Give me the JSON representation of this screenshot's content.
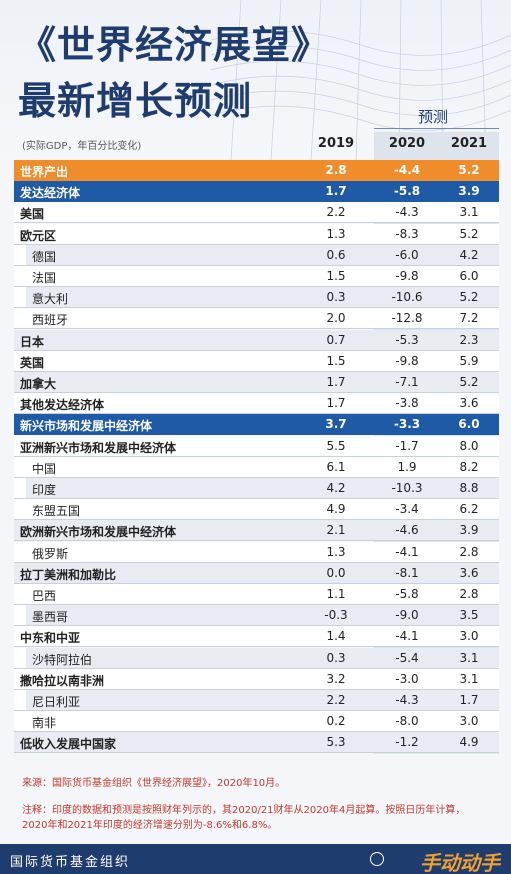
{
  "header": {
    "title_line1": "《世界经济展望》",
    "title_line2": "最新增长预测",
    "forecast": "预测",
    "unit": "(实际GDP，年百分比变化)"
  },
  "columns": [
    "2019",
    "2020",
    "2021"
  ],
  "rows": [
    {
      "label": "世界产出",
      "v": [
        "2.8",
        "-4.4",
        "5.2"
      ],
      "style": "orange"
    },
    {
      "label": "发达经济体",
      "v": [
        "1.7",
        "-5.8",
        "3.9"
      ],
      "style": "blue"
    },
    {
      "label": "美国",
      "v": [
        "2.2",
        "-4.3",
        "3.1"
      ],
      "style": "white"
    },
    {
      "label": "欧元区",
      "v": [
        "1.3",
        "-8.3",
        "5.2"
      ],
      "style": "white"
    },
    {
      "label": "德国",
      "v": [
        "0.6",
        "-6.0",
        "4.2"
      ],
      "style": "tint-indent"
    },
    {
      "label": "法国",
      "v": [
        "1.5",
        "-9.8",
        "6.0"
      ],
      "style": "white-indent"
    },
    {
      "label": "意大利",
      "v": [
        "0.3",
        "-10.6",
        "5.2"
      ],
      "style": "tint-indent"
    },
    {
      "label": "西班牙",
      "v": [
        "2.0",
        "-12.8",
        "7.2"
      ],
      "style": "white-indent"
    },
    {
      "label": "日本",
      "v": [
        "0.7",
        "-5.3",
        "2.3"
      ],
      "style": "tint"
    },
    {
      "label": "英国",
      "v": [
        "1.5",
        "-9.8",
        "5.9"
      ],
      "style": "white"
    },
    {
      "label": "加拿大",
      "v": [
        "1.7",
        "-7.1",
        "5.2"
      ],
      "style": "tint"
    },
    {
      "label": "其他发达经济体",
      "v": [
        "1.7",
        "-3.8",
        "3.6"
      ],
      "style": "white"
    },
    {
      "label": "新兴市场和发展中经济体",
      "v": [
        "3.7",
        "-3.3",
        "6.0"
      ],
      "style": "blue"
    },
    {
      "label": "亚洲新兴市场和发展中经济体",
      "v": [
        "5.5",
        "-1.7",
        "8.0"
      ],
      "style": "white"
    },
    {
      "label": "中国",
      "v": [
        "6.1",
        "1.9",
        "8.2"
      ],
      "style": "white-indent"
    },
    {
      "label": "印度",
      "v": [
        "4.2",
        "-10.3",
        "8.8"
      ],
      "style": "tint-indent"
    },
    {
      "label": "东盟五国",
      "v": [
        "4.9",
        "-3.4",
        "6.2"
      ],
      "style": "white-indent"
    },
    {
      "label": "欧洲新兴市场和发展中经济体",
      "v": [
        "2.1",
        "-4.6",
        "3.9"
      ],
      "style": "tint"
    },
    {
      "label": "俄罗斯",
      "v": [
        "1.3",
        "-4.1",
        "2.8"
      ],
      "style": "white-indent"
    },
    {
      "label": "拉丁美洲和加勒比",
      "v": [
        "0.0",
        "-8.1",
        "3.6"
      ],
      "style": "tint"
    },
    {
      "label": "巴西",
      "v": [
        "1.1",
        "-5.8",
        "2.8"
      ],
      "style": "white-indent"
    },
    {
      "label": "墨西哥",
      "v": [
        "-0.3",
        "-9.0",
        "3.5"
      ],
      "style": "tint-indent"
    },
    {
      "label": "中东和中亚",
      "v": [
        "1.4",
        "-4.1",
        "3.0"
      ],
      "style": "white"
    },
    {
      "label": "沙特阿拉伯",
      "v": [
        "0.3",
        "-5.4",
        "3.1"
      ],
      "style": "tint-indent"
    },
    {
      "label": "撒哈拉以南非洲",
      "v": [
        "3.2",
        "-3.0",
        "3.1"
      ],
      "style": "white"
    },
    {
      "label": "尼日利亚",
      "v": [
        "2.2",
        "-4.3",
        "1.7"
      ],
      "style": "tint-indent"
    },
    {
      "label": "南非",
      "v": [
        "0.2",
        "-8.0",
        "3.0"
      ],
      "style": "white-indent"
    },
    {
      "label": "低收入发展中国家",
      "v": [
        "5.3",
        "-1.2",
        "4.9"
      ],
      "style": "tint"
    }
  ],
  "footnotes": {
    "source": "来源：国际货币基金组织《世界经济展望》，2020年10月。",
    "note1": "注释：印度的数据和预测是按照财年列示的，其2020/21财年从2020年4月起算。按照日历年计算，",
    "note2": "2020年和2021年印度的经济增速分别为-8.6%和6.8%。"
  },
  "footer": {
    "org": "国际货币基金组织",
    "watermark": "手动动手游"
  },
  "colors": {
    "navy": "#1f3c6e",
    "orange": "#f08c2a",
    "blue": "#1f5aa6"
  },
  "chart_data": {
    "type": "table",
    "title": "《世界经济展望》最新增长预测",
    "columns": [
      "2019",
      "2020",
      "2021"
    ],
    "rows": [
      [
        "世界产出",
        2.8,
        -4.4,
        5.2
      ],
      [
        "发达经济体",
        1.7,
        -5.8,
        3.9
      ],
      [
        "美国",
        2.2,
        -4.3,
        3.1
      ],
      [
        "欧元区",
        1.3,
        -8.3,
        5.2
      ],
      [
        "德国",
        0.6,
        -6.0,
        4.2
      ],
      [
        "法国",
        1.5,
        -9.8,
        6.0
      ],
      [
        "意大利",
        0.3,
        -10.6,
        5.2
      ],
      [
        "西班牙",
        2.0,
        -12.8,
        7.2
      ],
      [
        "日本",
        0.7,
        -5.3,
        2.3
      ],
      [
        "英国",
        1.5,
        -9.8,
        5.9
      ],
      [
        "加拿大",
        1.7,
        -7.1,
        5.2
      ],
      [
        "其他发达经济体",
        1.7,
        -3.8,
        3.6
      ],
      [
        "新兴市场和发展中经济体",
        3.7,
        -3.3,
        6.0
      ],
      [
        "亚洲新兴市场和发展中经济体",
        5.5,
        -1.7,
        8.0
      ],
      [
        "中国",
        6.1,
        1.9,
        8.2
      ],
      [
        "印度",
        4.2,
        -10.3,
        8.8
      ],
      [
        "东盟五国",
        4.9,
        -3.4,
        6.2
      ],
      [
        "欧洲新兴市场和发展中经济体",
        2.1,
        -4.6,
        3.9
      ],
      [
        "俄罗斯",
        1.3,
        -4.1,
        2.8
      ],
      [
        "拉丁美洲和加勒比",
        0.0,
        -8.1,
        3.6
      ],
      [
        "巴西",
        1.1,
        -5.8,
        2.8
      ],
      [
        "墨西哥",
        -0.3,
        -9.0,
        3.5
      ],
      [
        "中东和中亚",
        1.4,
        -4.1,
        3.0
      ],
      [
        "沙特阿拉伯",
        0.3,
        -5.4,
        3.1
      ],
      [
        "撒哈拉以南非洲",
        3.2,
        -3.0,
        3.1
      ],
      [
        "尼日利亚",
        2.2,
        -4.3,
        1.7
      ],
      [
        "南非",
        0.2,
        -8.0,
        3.0
      ],
      [
        "低收入发展中国家",
        5.3,
        -1.2,
        4.9
      ]
    ]
  }
}
